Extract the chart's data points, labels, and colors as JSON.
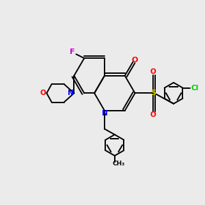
{
  "background_color": "#ebebeb",
  "bond_color": "#000000",
  "title": "",
  "atoms": {
    "N_quinoline": {
      "label": "N",
      "color": "#0000ff"
    },
    "N_morpholine": {
      "label": "N",
      "color": "#0000ff"
    },
    "O_carbonyl": {
      "label": "O",
      "color": "#ff0000"
    },
    "O_morpholine": {
      "label": "O",
      "color": "#ff0000"
    },
    "S": {
      "label": "S",
      "color": "#cccc00"
    },
    "F": {
      "label": "F",
      "color": "#cc00cc"
    },
    "Cl": {
      "label": "Cl",
      "color": "#00cc00"
    }
  },
  "figsize": [
    3.0,
    3.0
  ],
  "dpi": 100
}
